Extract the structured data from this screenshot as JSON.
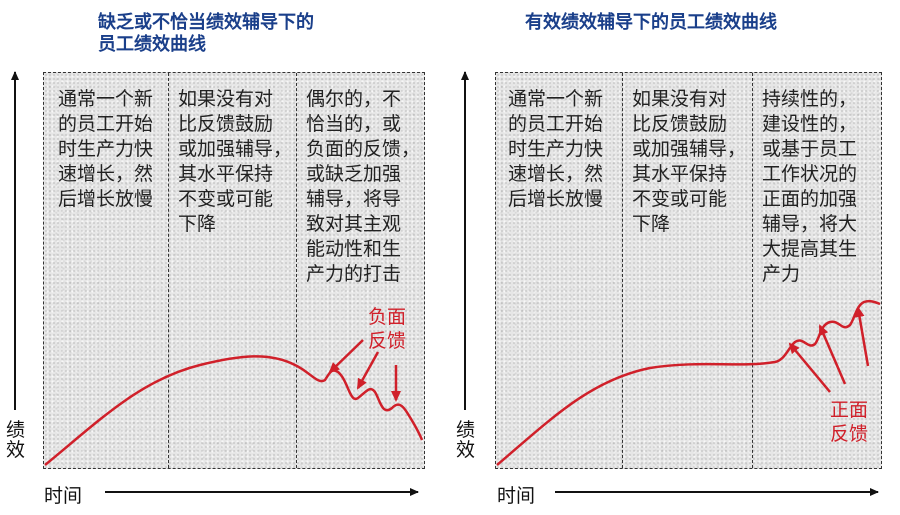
{
  "left": {
    "title": "缺乏或不恰当绩效辅导下的\n员工绩效曲线",
    "phases": [
      "通常一个新\n的员工开始\n时生产力快\n速增长，然\n后增长放慢",
      "如果没有对\n比反馈鼓励\n或加强辅导，\n其水平保持\n不变或可能\n下降",
      "偶尔的，不\n恰当的，或\n负面的反馈，\n或缺乏加强\n辅导，将导\n致对其主观\n能动性和生\n产力的打击"
    ],
    "feedback_label": "负面\n反馈",
    "x_axis": "时间",
    "y_axis": "绩效"
  },
  "right": {
    "title": "有效绩效辅导下的员工绩效曲线",
    "phases": [
      "通常一个新\n的员工开始\n时生产力快\n速增长，然\n后增长放慢",
      "如果没有对\n比反馈鼓励\n或加强辅导，\n其水平保持\n不变或可能\n下降",
      "持续性的，\n建设性的，\n或基于员工\n工作状况的\n正面的加强\n辅导，将大\n大提高其生\n产力"
    ],
    "feedback_label": "正面\n反馈",
    "x_axis": "时间",
    "y_axis": "绩效"
  },
  "colors": {
    "curve": "#d0202a",
    "title": "#1a3f8a",
    "axis": "#111111"
  }
}
